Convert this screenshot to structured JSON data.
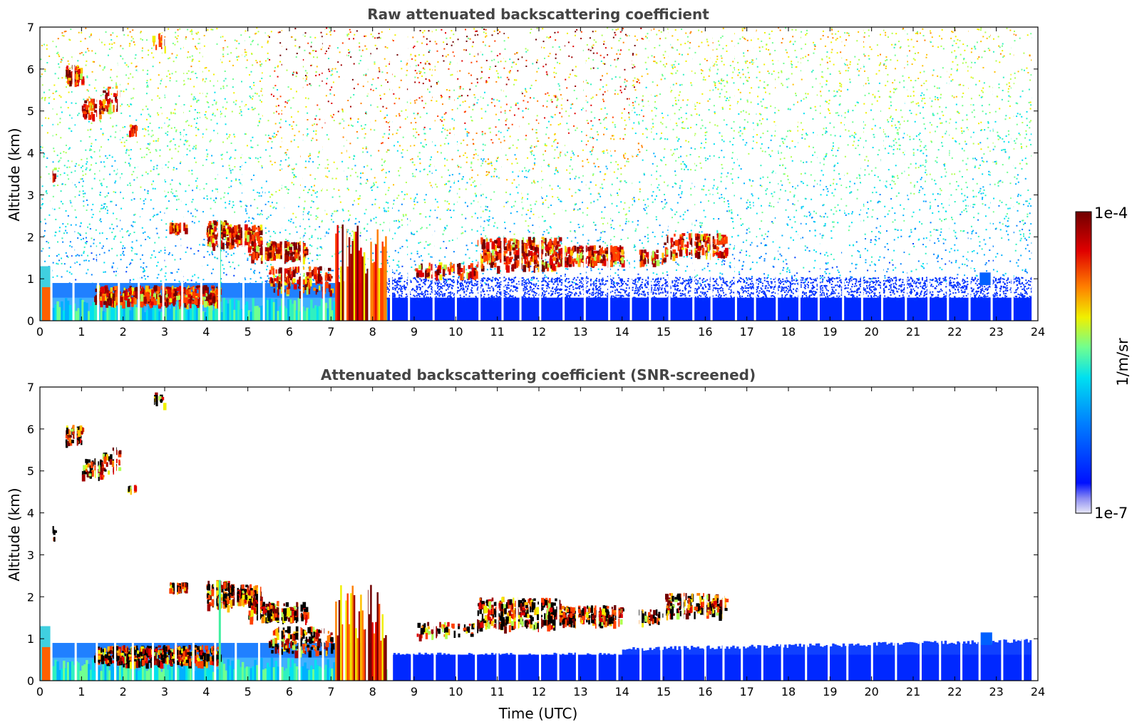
{
  "chart_data": [
    {
      "type": "heatmap",
      "title": "Raw attenuated backscattering coefficient",
      "xlabel": "",
      "ylabel": "Altitude (km)",
      "xlim": [
        0,
        24
      ],
      "ylim": [
        0,
        7
      ],
      "x_ticks": [
        "0",
        "1",
        "2",
        "3",
        "4",
        "5",
        "6",
        "7",
        "8",
        "9",
        "10",
        "11",
        "12",
        "13",
        "14",
        "15",
        "16",
        "17",
        "18",
        "19",
        "20",
        "21",
        "22",
        "23",
        "24"
      ],
      "y_ticks": [
        "0",
        "1",
        "2",
        "3",
        "4",
        "5",
        "6",
        "7"
      ],
      "data_end_hour": 23.85,
      "features": [
        {
          "name": "boundary layer",
          "t": [
            0,
            23.85
          ],
          "z": [
            0,
            0.6
          ],
          "level": "low"
        },
        {
          "name": "aerosol layer 0-8h",
          "t": [
            0,
            8.3
          ],
          "z": [
            0,
            0.9
          ],
          "level": "medium"
        },
        {
          "name": "cloud layer ~0.6 km",
          "t": [
            1.3,
            4.3
          ],
          "z": [
            0.45,
            0.85
          ],
          "level": "high"
        },
        {
          "name": "cloud layer ~2 km",
          "t": [
            3.1,
            8.3
          ],
          "z": [
            1.4,
            2.4
          ],
          "level": "high"
        },
        {
          "name": "cloud layer ~1.7 km",
          "t": [
            9.0,
            16.5
          ],
          "z": [
            1.2,
            2.0
          ],
          "level": "high"
        },
        {
          "name": "precipitation streaks",
          "t": [
            7.1,
            8.3
          ],
          "z": [
            0,
            2.3
          ],
          "level": "high"
        },
        {
          "name": "elevated cloud",
          "t": [
            0.6,
            2.3
          ],
          "z": [
            4.5,
            6.2
          ],
          "level": "high"
        }
      ]
    },
    {
      "type": "heatmap",
      "title": "Attenuated backscattering coefficient (SNR-screened)",
      "xlabel": "Time (UTC)",
      "ylabel": "Altitude (km)",
      "xlim": [
        0,
        24
      ],
      "ylim": [
        0,
        7
      ],
      "x_ticks": [
        "0",
        "1",
        "2",
        "3",
        "4",
        "5",
        "6",
        "7",
        "8",
        "9",
        "10",
        "11",
        "12",
        "13",
        "14",
        "15",
        "16",
        "17",
        "18",
        "19",
        "20",
        "21",
        "22",
        "23",
        "24"
      ],
      "y_ticks": [
        "0",
        "1",
        "2",
        "3",
        "4",
        "5",
        "6",
        "7"
      ],
      "data_end_hour": 23.85,
      "features": [
        {
          "name": "boundary layer",
          "t": [
            0.3,
            23.85
          ],
          "z": [
            0,
            0.7
          ],
          "level": "low"
        },
        {
          "name": "aerosol layer 0-8h",
          "t": [
            0,
            8.3
          ],
          "z": [
            0,
            1.1
          ],
          "level": "medium"
        },
        {
          "name": "cloud layer ~0.6 km",
          "t": [
            1.3,
            4.3
          ],
          "z": [
            0.45,
            0.85
          ],
          "level": "high"
        },
        {
          "name": "cloud layer ~2 km",
          "t": [
            3.1,
            8.3
          ],
          "z": [
            1.4,
            2.4
          ],
          "level": "high"
        },
        {
          "name": "cloud layer ~1.7 km",
          "t": [
            9.0,
            16.8
          ],
          "z": [
            1.2,
            2.1
          ],
          "level": "high"
        },
        {
          "name": "precipitation streaks",
          "t": [
            7.1,
            8.3
          ],
          "z": [
            0,
            2.3
          ],
          "level": "high"
        },
        {
          "name": "elevated cloud",
          "t": [
            0.6,
            2.3
          ],
          "z": [
            4.5,
            6.2
          ],
          "level": "high"
        }
      ]
    }
  ],
  "colorbar": {
    "label": "1/m/sr",
    "max_label": "1e-4",
    "min_label": "1e-7",
    "colors": [
      "#e8e8f8",
      "#b8b8f0",
      "#8a8af2",
      "#5060ff",
      "#0010ff",
      "#0040ff",
      "#0080ff",
      "#00b0ff",
      "#00e0f0",
      "#30f0c0",
      "#70ff90",
      "#b0ff50",
      "#f0f000",
      "#ffc000",
      "#ff8000",
      "#ff4000",
      "#e00000",
      "#a00000",
      "#700000"
    ]
  }
}
